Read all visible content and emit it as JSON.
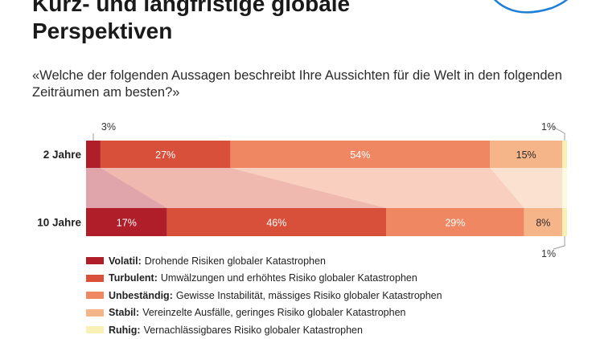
{
  "header": {
    "title_line1": "Kurz- und langfristige globale",
    "title_line2": "Perspektiven",
    "question": "«Welche der folgenden Aussagen beschreibt Ihre Aussichten für die Welt in den folgenden Zeiträumen am besten?»"
  },
  "chart_data": {
    "type": "bar",
    "orientation": "horizontal",
    "stacked": true,
    "normalized_percent": true,
    "categories": [
      "2 Jahre",
      "10 Jahre"
    ],
    "series": [
      {
        "name": "Volatil",
        "description": "Drohende Risiken globaler Katastrophen",
        "color": "#b01e2a",
        "values": [
          3,
          17
        ],
        "labels": [
          "3%",
          "17%"
        ]
      },
      {
        "name": "Turbulent",
        "description": "Umwälzungen und erhöhtes Risiko globaler Katastrophen",
        "color": "#d9503a",
        "values": [
          27,
          46
        ],
        "labels": [
          "27%",
          "46%"
        ]
      },
      {
        "name": "Unbeständig",
        "description": "Gewisse Instabilität, mässiges Risiko globaler Katastrophen",
        "color": "#ef8762",
        "values": [
          54,
          29
        ],
        "labels": [
          "54%",
          "29%"
        ]
      },
      {
        "name": "Stabil",
        "description": "Vereinzelte Ausfälle, geringes Risiko globaler Katastrophen",
        "color": "#f6b489",
        "values": [
          15,
          8
        ],
        "labels": [
          "15%",
          "8%"
        ]
      },
      {
        "name": "Ruhig",
        "description": "Vernachlässigbares Risiko globaler Katastrophen",
        "color": "#f8f0b4",
        "values": [
          1,
          1
        ],
        "labels": [
          "1%",
          "1%"
        ]
      }
    ],
    "legend_position": "bottom-left",
    "grid": false
  }
}
